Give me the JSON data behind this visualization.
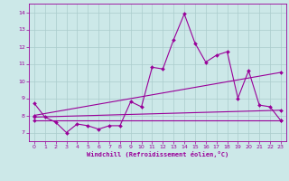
{
  "xlabel": "Windchill (Refroidissement éolien,°C)",
  "bg_color": "#cce8e8",
  "line_color": "#990099",
  "grid_color": "#aacccc",
  "xlim": [
    -0.5,
    23.5
  ],
  "ylim": [
    6.5,
    14.5
  ],
  "xticks": [
    0,
    1,
    2,
    3,
    4,
    5,
    6,
    7,
    8,
    9,
    10,
    11,
    12,
    13,
    14,
    15,
    16,
    17,
    18,
    19,
    20,
    21,
    22,
    23
  ],
  "yticks": [
    7,
    8,
    9,
    10,
    11,
    12,
    13,
    14
  ],
  "line1_x": [
    0,
    1,
    2,
    3,
    4,
    5,
    6,
    7,
    8,
    9,
    10,
    11,
    12,
    13,
    14,
    15,
    16,
    17,
    18,
    19,
    20,
    21,
    22,
    23
  ],
  "line1_y": [
    8.7,
    7.9,
    7.6,
    7.0,
    7.5,
    7.4,
    7.2,
    7.4,
    7.4,
    8.8,
    8.5,
    10.8,
    10.7,
    12.4,
    13.9,
    12.2,
    11.1,
    11.5,
    11.7,
    9.0,
    10.6,
    8.6,
    8.5,
    7.7
  ],
  "line2_x": [
    0,
    23
  ],
  "line2_y": [
    8.0,
    10.5
  ],
  "line3_x": [
    0,
    23
  ],
  "line3_y": [
    7.9,
    8.3
  ],
  "line4_x": [
    0,
    23
  ],
  "line4_y": [
    7.7,
    7.7
  ],
  "markersize": 2.0,
  "linewidth": 0.8,
  "tick_fontsize": 4.5,
  "xlabel_fontsize": 5.0
}
